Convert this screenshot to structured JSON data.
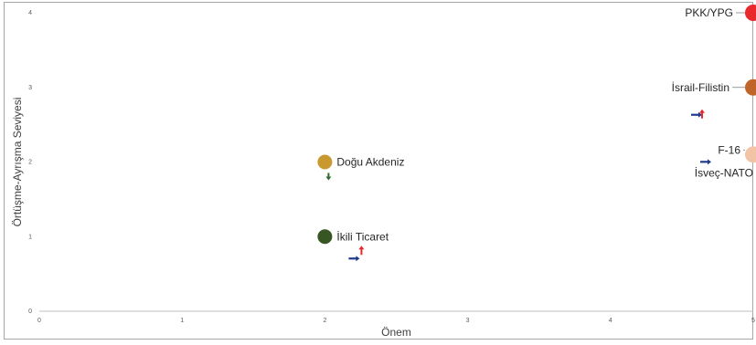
{
  "chart_data": {
    "type": "scatter",
    "xlabel": "Önem",
    "ylabel": "Örtüşme-Ayrışma Seviyesi",
    "xlim": [
      0,
      5
    ],
    "ylim": [
      0,
      4
    ],
    "x_ticks": [
      "0",
      "1",
      "2",
      "3",
      "4",
      "5"
    ],
    "y_ticks": [
      "0",
      "1",
      "2",
      "3",
      "4"
    ],
    "grid": false,
    "points": [
      {
        "label": "PKK/YPG",
        "x": 5,
        "y": 4,
        "color": "#e8282b",
        "trend": []
      },
      {
        "label": "İsrail-Filistin",
        "x": 5,
        "y": 3,
        "color": "#c0652a",
        "trend": [
          "right",
          "up"
        ]
      },
      {
        "label": "F-16",
        "x": 5,
        "y": 2.1,
        "color": "#f3c3a6",
        "trend": [
          "right"
        ]
      },
      {
        "label": "İsveç-NATO",
        "x": 5,
        "y": 2.05,
        "color": "#f3c3a6",
        "trend": []
      },
      {
        "label": "Doğu Akdeniz",
        "x": 2,
        "y": 2,
        "color": "#c9982e",
        "trend": [
          "down"
        ]
      },
      {
        "label": "İkili Ticaret",
        "x": 2,
        "y": 1,
        "color": "#375623",
        "trend": [
          "right",
          "up"
        ]
      }
    ],
    "arrow_colors": {
      "right": "#1f3b8c",
      "up": "#e8282b",
      "down": "#2e6b2e"
    }
  }
}
